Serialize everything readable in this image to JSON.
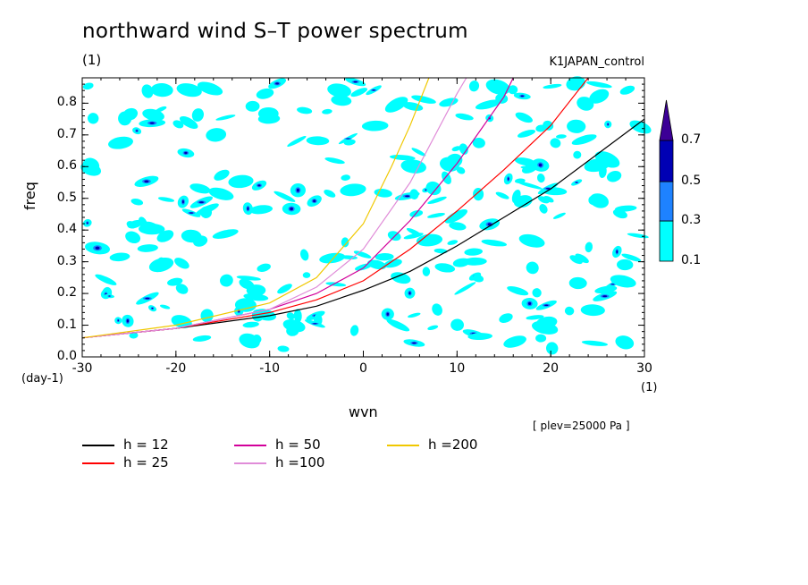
{
  "title": "northward wind S–T power spectrum",
  "units_label": "(1)",
  "run_name": "K1JAPAN_control",
  "plev_note": "[ plev=25000 Pa ]",
  "colors": {
    "shade_0.1": "#00ffff",
    "shade_0.3": "#1e82ff",
    "shade_0.5": "#0000b4",
    "shade_0.7": "#3c0096"
  },
  "chart_data": {
    "type": "line",
    "xlabel": "wvn",
    "ylabel": "freq",
    "x_units": "(1)",
    "y_units": "(day-1)",
    "xlim": [
      -30,
      30
    ],
    "ylim": [
      0.0,
      0.88
    ],
    "x_ticks": [
      "-30",
      "-20",
      "-10",
      "0",
      "10",
      "20",
      "30"
    ],
    "y_ticks": [
      "0.0",
      "0.1",
      "0.2",
      "0.3",
      "0.4",
      "0.5",
      "0.6",
      "0.7",
      "0.8"
    ],
    "colorbar_ticks": [
      "0.1",
      "0.3",
      "0.5",
      "0.7"
    ],
    "legend": [
      "h = 12",
      "h = 25",
      "h = 50",
      "h =100",
      "h =200"
    ],
    "series": [
      {
        "name": "h = 12",
        "color": "#000000",
        "x": [
          -30,
          -20,
          -10,
          -5,
          0,
          5,
          10,
          15,
          20,
          25,
          30
        ],
        "y": [
          0.06,
          0.09,
          0.13,
          0.16,
          0.21,
          0.27,
          0.35,
          0.44,
          0.53,
          0.64,
          0.75
        ]
      },
      {
        "name": "h = 25",
        "color": "#ff0000",
        "x": [
          -30,
          -20,
          -10,
          -5,
          0,
          5,
          10,
          15,
          20,
          24
        ],
        "y": [
          0.06,
          0.09,
          0.14,
          0.18,
          0.24,
          0.34,
          0.46,
          0.59,
          0.73,
          0.88
        ]
      },
      {
        "name": "h = 50",
        "color": "#d2009a",
        "x": [
          -30,
          -20,
          -10,
          -5,
          0,
          5,
          10,
          15,
          16
        ],
        "y": [
          0.06,
          0.09,
          0.15,
          0.2,
          0.28,
          0.43,
          0.61,
          0.82,
          0.88
        ]
      },
      {
        "name": "h =100",
        "color": "#e08cd8",
        "x": [
          -30,
          -20,
          -10,
          -5,
          0,
          5,
          10,
          11
        ],
        "y": [
          0.06,
          0.09,
          0.15,
          0.22,
          0.34,
          0.55,
          0.83,
          0.88
        ]
      },
      {
        "name": "h =200",
        "color": "#f0c800",
        "x": [
          -30,
          -20,
          -10,
          -5,
          0,
          3,
          5,
          7
        ],
        "y": [
          0.06,
          0.1,
          0.17,
          0.25,
          0.42,
          0.6,
          0.73,
          0.88
        ]
      }
    ]
  }
}
